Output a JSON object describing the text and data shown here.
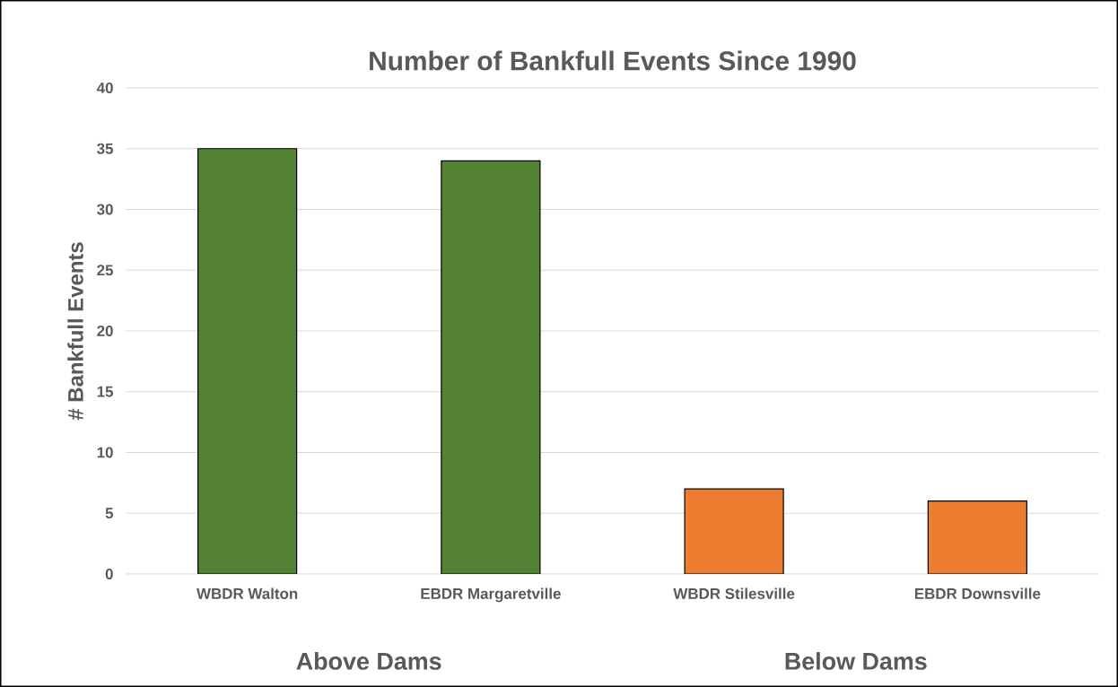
{
  "chart_data": {
    "type": "bar",
    "title": "Number of Bankfull Events Since 1990",
    "ylabel": "# Bankfull Events",
    "categories": [
      "WBDR Walton",
      "EBDR Margaretville",
      "WBDR Stilesville",
      "EBDR Downsville"
    ],
    "values": [
      35,
      34,
      7,
      6
    ],
    "colors": [
      "#548235",
      "#548235",
      "#ed7d31",
      "#ed7d31"
    ],
    "ylim": [
      0,
      40
    ],
    "yticks": [
      0,
      5,
      10,
      15,
      20,
      25,
      30,
      35,
      40
    ],
    "grid": "y",
    "annotations": [
      "Above Dams",
      "Below Dams"
    ]
  }
}
